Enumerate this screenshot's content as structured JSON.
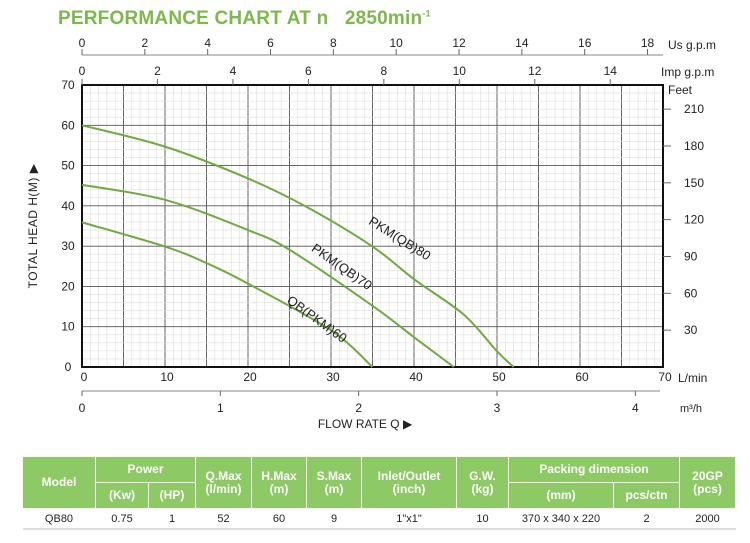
{
  "title": {
    "main": "PERFORMANCE CHART AT n   2850min",
    "superscript": "-1"
  },
  "chart_data": {
    "type": "line",
    "xlabel": "FLOW RATE Q",
    "ylabel": "TOTAL HEAD H(M)",
    "xlim": [
      0,
      70
    ],
    "ylim": [
      0,
      70
    ],
    "x_unit": "L/min",
    "x_ticks": [
      0,
      10,
      20,
      30,
      40,
      50,
      60,
      70
    ],
    "y_ticks": [
      0,
      10,
      20,
      30,
      40,
      50,
      60,
      70
    ],
    "grid": true,
    "secondary_axes": {
      "us_gpm": {
        "label": "Us g.p.m",
        "ticks": [
          0,
          2,
          4,
          6,
          8,
          10,
          12,
          14,
          16,
          18
        ]
      },
      "imp_gpm": {
        "label": "Imp g.p.m",
        "ticks": [
          0,
          2,
          4,
          6,
          8,
          10,
          12,
          14
        ]
      },
      "feet": {
        "label": "Feet",
        "ticks": [
          30,
          60,
          90,
          120,
          150,
          180,
          210
        ]
      },
      "m3h": {
        "label": "m³/h",
        "ticks": [
          0,
          1,
          2,
          3,
          4
        ]
      }
    },
    "series": [
      {
        "name": "PKM(QB)80",
        "x": [
          0,
          10,
          20,
          27,
          35,
          40,
          46,
          50,
          52
        ],
        "y": [
          60,
          54.7,
          46.8,
          39.8,
          29.9,
          21.8,
          13,
          3.9,
          0
        ]
      },
      {
        "name": "PKM(QB)70",
        "x": [
          0,
          10,
          20,
          25,
          35,
          40,
          44.8
        ],
        "y": [
          45.2,
          41.5,
          34,
          29.1,
          15.2,
          7.4,
          0
        ]
      },
      {
        "name": "QB(PKM)60",
        "x": [
          0,
          10,
          15,
          20,
          30,
          35
        ],
        "y": [
          35.9,
          29.9,
          25.8,
          20.7,
          9.1,
          0
        ]
      }
    ],
    "colors": {
      "curve": "#6fab3e",
      "title": "#7cb84a",
      "header": "#8dc964"
    }
  },
  "table": {
    "headers": {
      "model": "Model",
      "power": "Power",
      "kw": "(Kw)",
      "hp": "(HP)",
      "qmax": "Q.Max (l/min)",
      "hmax": "H.Max (m)",
      "smax": "S.Max (m)",
      "inlet": "Inlet/Outlet (inch)",
      "gw": "G.W. (kg)",
      "packing": "Packing dimension",
      "mm": "(mm)",
      "pcs": "pcs/ctn",
      "gp": "20GP (pcs)"
    },
    "rows": [
      {
        "model": "QB80",
        "kw": "0.75",
        "hp": "1",
        "qmax": "52",
        "hmax": "60",
        "smax": "9",
        "inlet": "1\"x1\"",
        "gw": "10",
        "mm": "370 x 340 x 220",
        "pcs": "2",
        "gp": "2000"
      }
    ]
  }
}
